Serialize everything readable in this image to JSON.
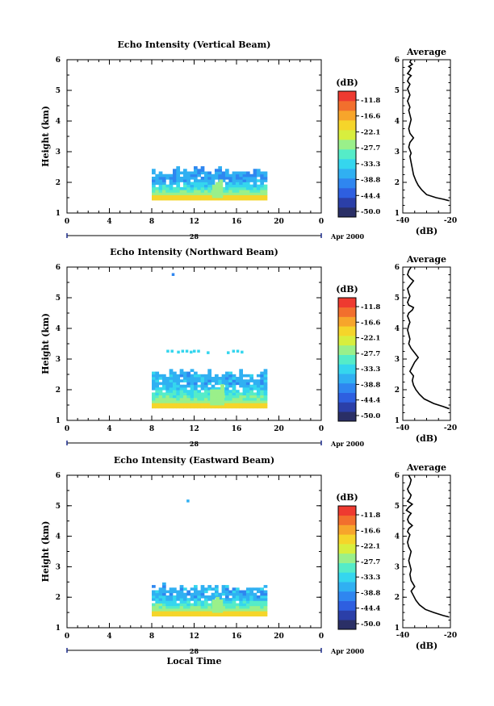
{
  "chart_data": [
    {
      "type": "heatmap",
      "title": "Echo Intensity (Vertical Beam)",
      "ylabel": "Height (km)",
      "xlabel": "",
      "xlim": [
        0,
        24
      ],
      "ylim": [
        1,
        6
      ],
      "xticks": [
        "0",
        "4",
        "8",
        "12",
        "16",
        "20",
        "0"
      ],
      "yticks": [
        "1",
        "2",
        "3",
        "4",
        "5",
        "6"
      ],
      "date_label": "28",
      "date_suffix": "Apr 2000",
      "colorbar": {
        "label": "(dB)",
        "ticks": [
          "-11.8",
          "-16.6",
          "-22.1",
          "-27.7",
          "-33.3",
          "-38.8",
          "-44.4",
          "-50.0"
        ],
        "range": [
          -50,
          -11
        ]
      },
      "echo_patches": [
        {
          "t0": 8.0,
          "t1": 18.6,
          "h0": 1.42,
          "h1": 2.35,
          "lower_level_db": -24,
          "upper_level_db": -38
        },
        {
          "t0": 13.7,
          "t1": 14.6,
          "h0": 1.5,
          "h1": 2.0,
          "lower_level_db": -27,
          "upper_level_db": -27
        }
      ],
      "scattered_points": [],
      "average_profile": {
        "title": "Average",
        "xlabel": "(dB)",
        "xlim": [
          -40,
          -20
        ],
        "xticks": [
          "-40",
          "-20"
        ],
        "ylim": [
          1,
          6
        ],
        "yticks": [
          "1",
          "2",
          "3",
          "4",
          "5",
          "6"
        ],
        "x_db": [
          -20.5,
          -23,
          -26,
          -30,
          -32,
          -33.5,
          -34.5,
          -35.5,
          -36,
          -36.5,
          -37,
          -36.5,
          -37,
          -37.5,
          -37,
          -35.5,
          -37,
          -37.5,
          -37,
          -36.5,
          -37,
          -37.5,
          -37,
          -37.5,
          -38,
          -37.5,
          -37,
          -37.5,
          -38,
          -37.5,
          -37,
          -38,
          -37.5,
          -36.5,
          -38,
          -37,
          -36.5,
          -37.5,
          -36,
          -37,
          -36.5
        ],
        "height_km": [
          1.4,
          1.45,
          1.5,
          1.6,
          1.75,
          1.9,
          2.05,
          2.25,
          2.45,
          2.65,
          2.85,
          2.95,
          3.05,
          3.15,
          3.3,
          3.45,
          3.6,
          3.75,
          3.9,
          4.05,
          4.2,
          4.35,
          4.45,
          4.55,
          4.65,
          4.75,
          4.85,
          4.95,
          5.05,
          5.12,
          5.2,
          5.3,
          5.4,
          5.48,
          5.55,
          5.65,
          5.72,
          5.78,
          5.85,
          5.92,
          6.0
        ]
      }
    },
    {
      "type": "heatmap",
      "title": "Echo Intensity (Northward Beam)",
      "ylabel": "Height (km)",
      "xlabel": "",
      "xlim": [
        0,
        24
      ],
      "ylim": [
        1,
        6
      ],
      "xticks": [
        "0",
        "4",
        "8",
        "12",
        "16",
        "20",
        "0"
      ],
      "yticks": [
        "1",
        "2",
        "3",
        "4",
        "5",
        "6"
      ],
      "date_label": "28",
      "date_suffix": "Apr 2000",
      "colorbar": {
        "label": "(dB)",
        "ticks": [
          "-11.8",
          "-16.6",
          "-22.1",
          "-27.7",
          "-33.3",
          "-38.8",
          "-44.4",
          "-50.0"
        ],
        "range": [
          -50,
          -11
        ]
      },
      "echo_patches": [
        {
          "t0": 8.0,
          "t1": 18.6,
          "h0": 1.4,
          "h1": 2.5,
          "lower_level_db": -24,
          "upper_level_db": -37
        },
        {
          "t0": 13.5,
          "t1": 14.6,
          "h0": 1.5,
          "h1": 2.1,
          "lower_level_db": -27,
          "upper_level_db": -27
        }
      ],
      "scattered_points": [
        {
          "t": 9.5,
          "h": 3.25,
          "db": -33
        },
        {
          "t": 9.9,
          "h": 3.25,
          "db": -33
        },
        {
          "t": 10.5,
          "h": 3.22,
          "db": -33
        },
        {
          "t": 10.9,
          "h": 3.25,
          "db": -33
        },
        {
          "t": 11.3,
          "h": 3.25,
          "db": -33
        },
        {
          "t": 11.7,
          "h": 3.22,
          "db": -33
        },
        {
          "t": 12.0,
          "h": 3.25,
          "db": -33
        },
        {
          "t": 12.4,
          "h": 3.25,
          "db": -33
        },
        {
          "t": 13.3,
          "h": 3.2,
          "db": -33
        },
        {
          "t": 15.2,
          "h": 3.2,
          "db": -33
        },
        {
          "t": 15.7,
          "h": 3.25,
          "db": -33
        },
        {
          "t": 16.1,
          "h": 3.25,
          "db": -33
        },
        {
          "t": 16.5,
          "h": 3.22,
          "db": -33
        },
        {
          "t": 10.0,
          "h": 5.75,
          "db": -40
        }
      ],
      "average_profile": {
        "title": "Average",
        "xlabel": "(dB)",
        "xlim": [
          -40,
          -20
        ],
        "xticks": [
          "-40",
          "-20"
        ],
        "ylim": [
          1,
          6
        ],
        "yticks": [
          "1",
          "2",
          "3",
          "4",
          "5",
          "6"
        ],
        "x_db": [
          -20.5,
          -23,
          -27,
          -31,
          -33,
          -34.5,
          -35.5,
          -36,
          -35.5,
          -37,
          -36,
          -35,
          -33.5,
          -35,
          -36.5,
          -37.5,
          -37,
          -37.5,
          -38,
          -37.5,
          -37,
          -37.5,
          -38,
          -37.5,
          -36,
          -35.5,
          -37.5,
          -38,
          -37.5,
          -37,
          -37.5,
          -38,
          -36.5,
          -35.5,
          -37,
          -38,
          -37.5,
          -36.5
        ],
        "height_km": [
          1.38,
          1.45,
          1.55,
          1.7,
          1.85,
          2.0,
          2.15,
          2.3,
          2.45,
          2.6,
          2.75,
          2.9,
          3.05,
          3.2,
          3.35,
          3.5,
          3.65,
          3.8,
          3.95,
          4.1,
          4.2,
          4.3,
          4.4,
          4.5,
          4.6,
          4.68,
          4.76,
          4.85,
          4.95,
          5.05,
          5.15,
          5.3,
          5.45,
          5.55,
          5.65,
          5.75,
          5.88,
          6.0
        ]
      }
    },
    {
      "type": "heatmap",
      "title": "Echo Intensity (Eastward Beam)",
      "ylabel": "Height (km)",
      "xlabel": "Local Time",
      "xlim": [
        0,
        24
      ],
      "ylim": [
        1,
        6
      ],
      "xticks": [
        "0",
        "4",
        "8",
        "12",
        "16",
        "20",
        "0"
      ],
      "yticks": [
        "1",
        "2",
        "3",
        "4",
        "5",
        "6"
      ],
      "date_label": "28",
      "date_suffix": "Apr 2000",
      "colorbar": {
        "label": "(dB)",
        "ticks": [
          "-11.8",
          "-16.6",
          "-22.1",
          "-27.7",
          "-33.3",
          "-38.8",
          "-44.4",
          "-50.0"
        ],
        "range": [
          -50,
          -11
        ]
      },
      "echo_patches": [
        {
          "t0": 8.0,
          "t1": 18.6,
          "h0": 1.38,
          "h1": 2.3,
          "lower_level_db": -24,
          "upper_level_db": -37
        },
        {
          "t0": 13.7,
          "t1": 14.6,
          "h0": 1.5,
          "h1": 2.0,
          "lower_level_db": -27,
          "upper_level_db": -27
        }
      ],
      "scattered_points": [
        {
          "t": 11.4,
          "h": 5.15,
          "db": -36
        }
      ],
      "average_profile": {
        "title": "Average",
        "xlabel": "(dB)",
        "xlim": [
          -40,
          -20
        ],
        "xticks": [
          "-40",
          "-20"
        ],
        "ylim": [
          1,
          6
        ],
        "yticks": [
          "1",
          "2",
          "3",
          "4",
          "5",
          "6"
        ],
        "x_db": [
          -20.5,
          -23,
          -27,
          -30.5,
          -33,
          -34.5,
          -35.5,
          -36.5,
          -35,
          -36.5,
          -37,
          -36.5,
          -37,
          -37.5,
          -37,
          -36.5,
          -37.5,
          -38,
          -37.5,
          -37,
          -38,
          -37.5,
          -36,
          -37.5,
          -38,
          -37.5,
          -36.5,
          -38.5,
          -37.5,
          -36,
          -38,
          -37,
          -36.5,
          -37.5,
          -38,
          -37,
          -36.5,
          -37.5
        ],
        "height_km": [
          1.35,
          1.4,
          1.5,
          1.6,
          1.75,
          1.9,
          2.05,
          2.2,
          2.35,
          2.55,
          2.75,
          2.9,
          3.05,
          3.2,
          3.35,
          3.5,
          3.65,
          3.8,
          3.95,
          4.05,
          4.15,
          4.25,
          4.35,
          4.45,
          4.55,
          4.65,
          4.75,
          4.85,
          4.95,
          5.05,
          5.15,
          5.25,
          5.35,
          5.45,
          5.55,
          5.7,
          5.85,
          6.0
        ]
      }
    }
  ],
  "colors": {
    "colorbar_stops": [
      "#2a2f66",
      "#2b3fa8",
      "#2e5fe0",
      "#2f86f0",
      "#30b0f2",
      "#35d6ee",
      "#55ecc8",
      "#9af08a",
      "#d8ee3e",
      "#f5d52a",
      "#f7a52b",
      "#f26f2d",
      "#ee3a30"
    ]
  }
}
